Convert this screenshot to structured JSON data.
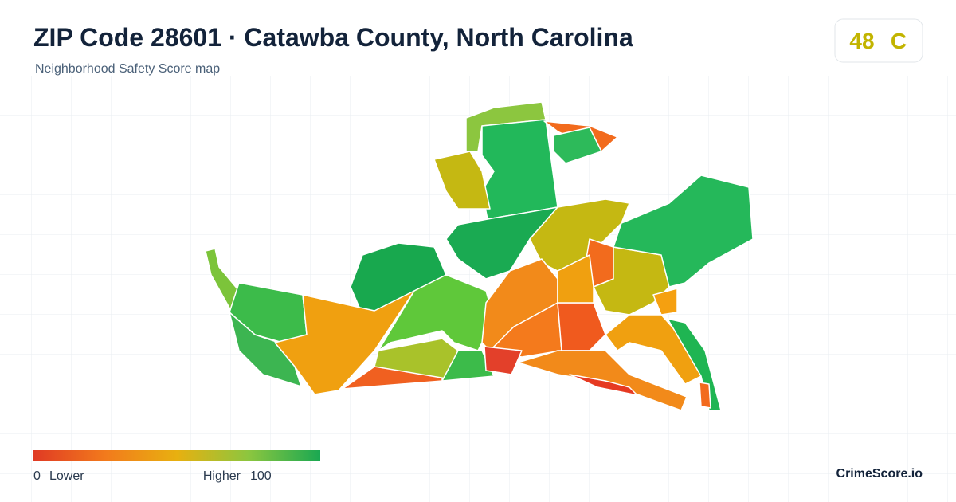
{
  "header": {
    "title": "ZIP Code 28601 · Catawba County, North Carolina",
    "subtitle": "Neighborhood Safety Score map"
  },
  "score": {
    "value": 48,
    "grade": "C"
  },
  "legend": {
    "min": 0,
    "min_label": "Lower",
    "max_label": "Higher",
    "max": 100
  },
  "brand": "CrimeScore.io"
}
